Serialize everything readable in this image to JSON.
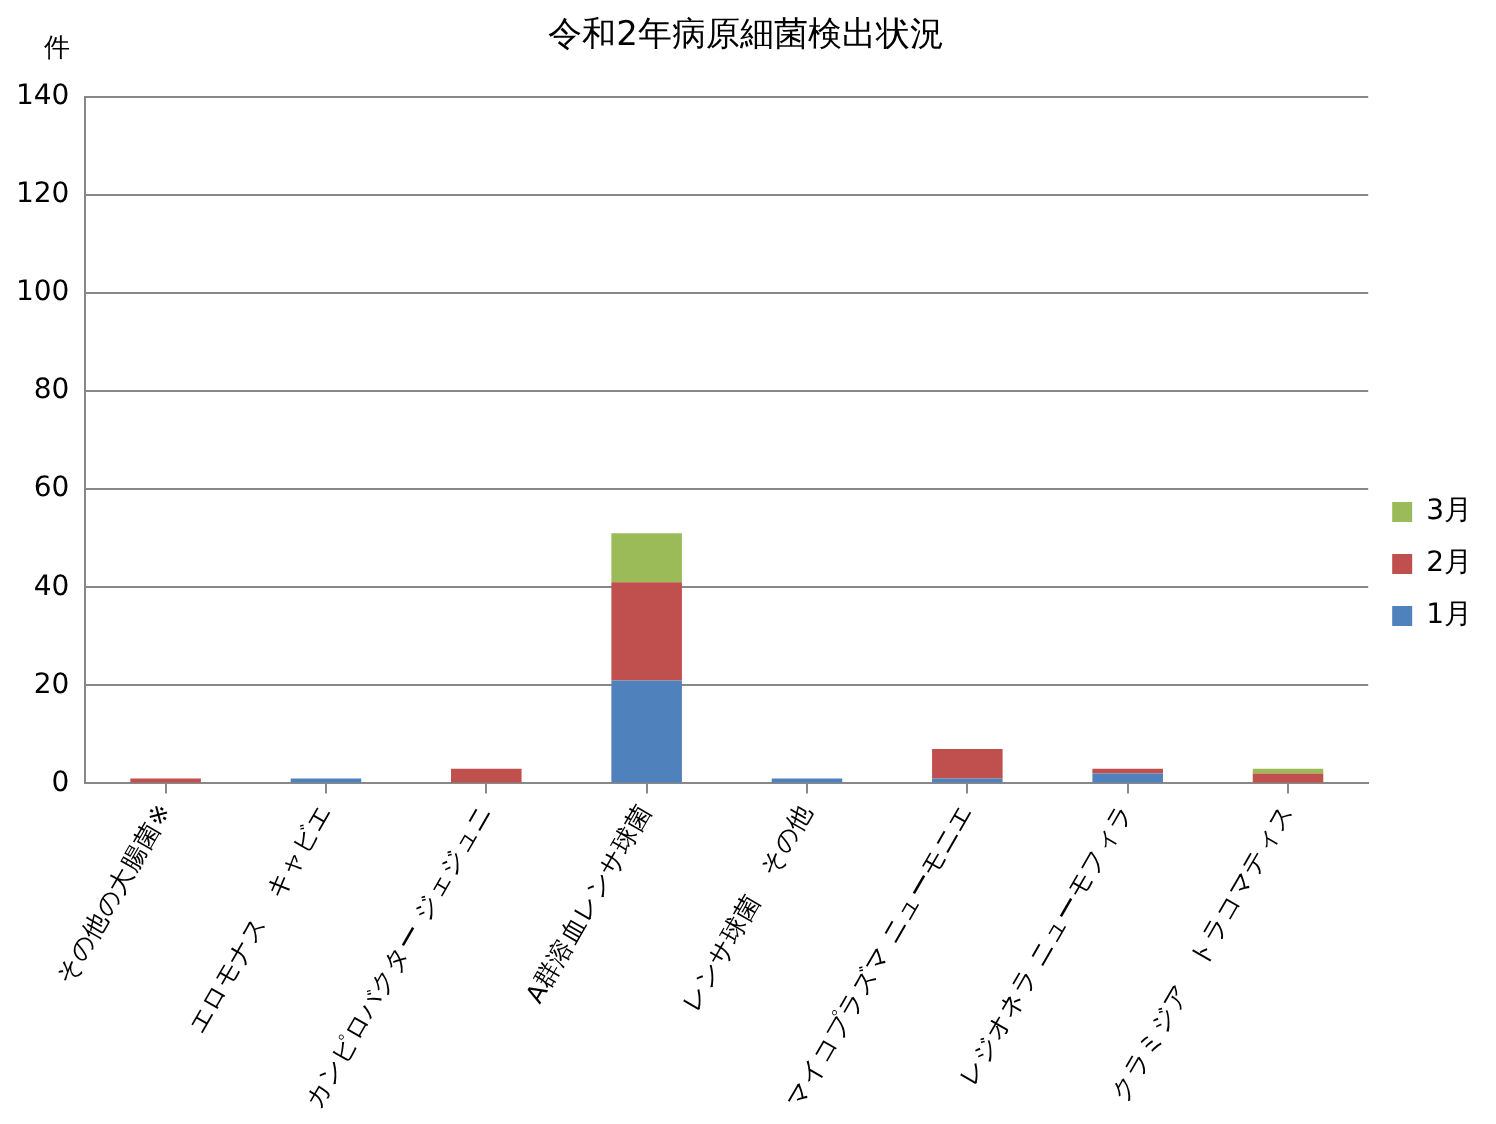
{
  "chart_data": {
    "type": "bar",
    "title": "令和2年病原細菌検出状況",
    "ylabel": "件",
    "categories": [
      "その他の大腸菌※",
      "エロモナス　キャビエ",
      "カンピロバクター ジェジュニ",
      "A群溶血レンサ球菌",
      "レンサ球菌　その他",
      "マイコプラズマ ニューモニエ",
      "レジオネラ ニューモフィラ",
      "クラミジア　トラコマティス"
    ],
    "series": [
      {
        "name": "1月",
        "color": "#4f81bd",
        "values": [
          null,
          1,
          null,
          21,
          1,
          1,
          2,
          null
        ]
      },
      {
        "name": "2月",
        "color": "#c0504d",
        "values": [
          1,
          null,
          3,
          20,
          null,
          6,
          1,
          2
        ]
      },
      {
        "name": "3月",
        "color": "#9bbb59",
        "values": [
          null,
          null,
          null,
          10,
          null,
          null,
          null,
          1
        ]
      }
    ],
    "stacked": true,
    "ylim": [
      0,
      140
    ],
    "yticks": [
      0,
      20,
      40,
      60,
      80,
      100,
      120,
      140
    ],
    "grid": "y",
    "legend": "right"
  }
}
